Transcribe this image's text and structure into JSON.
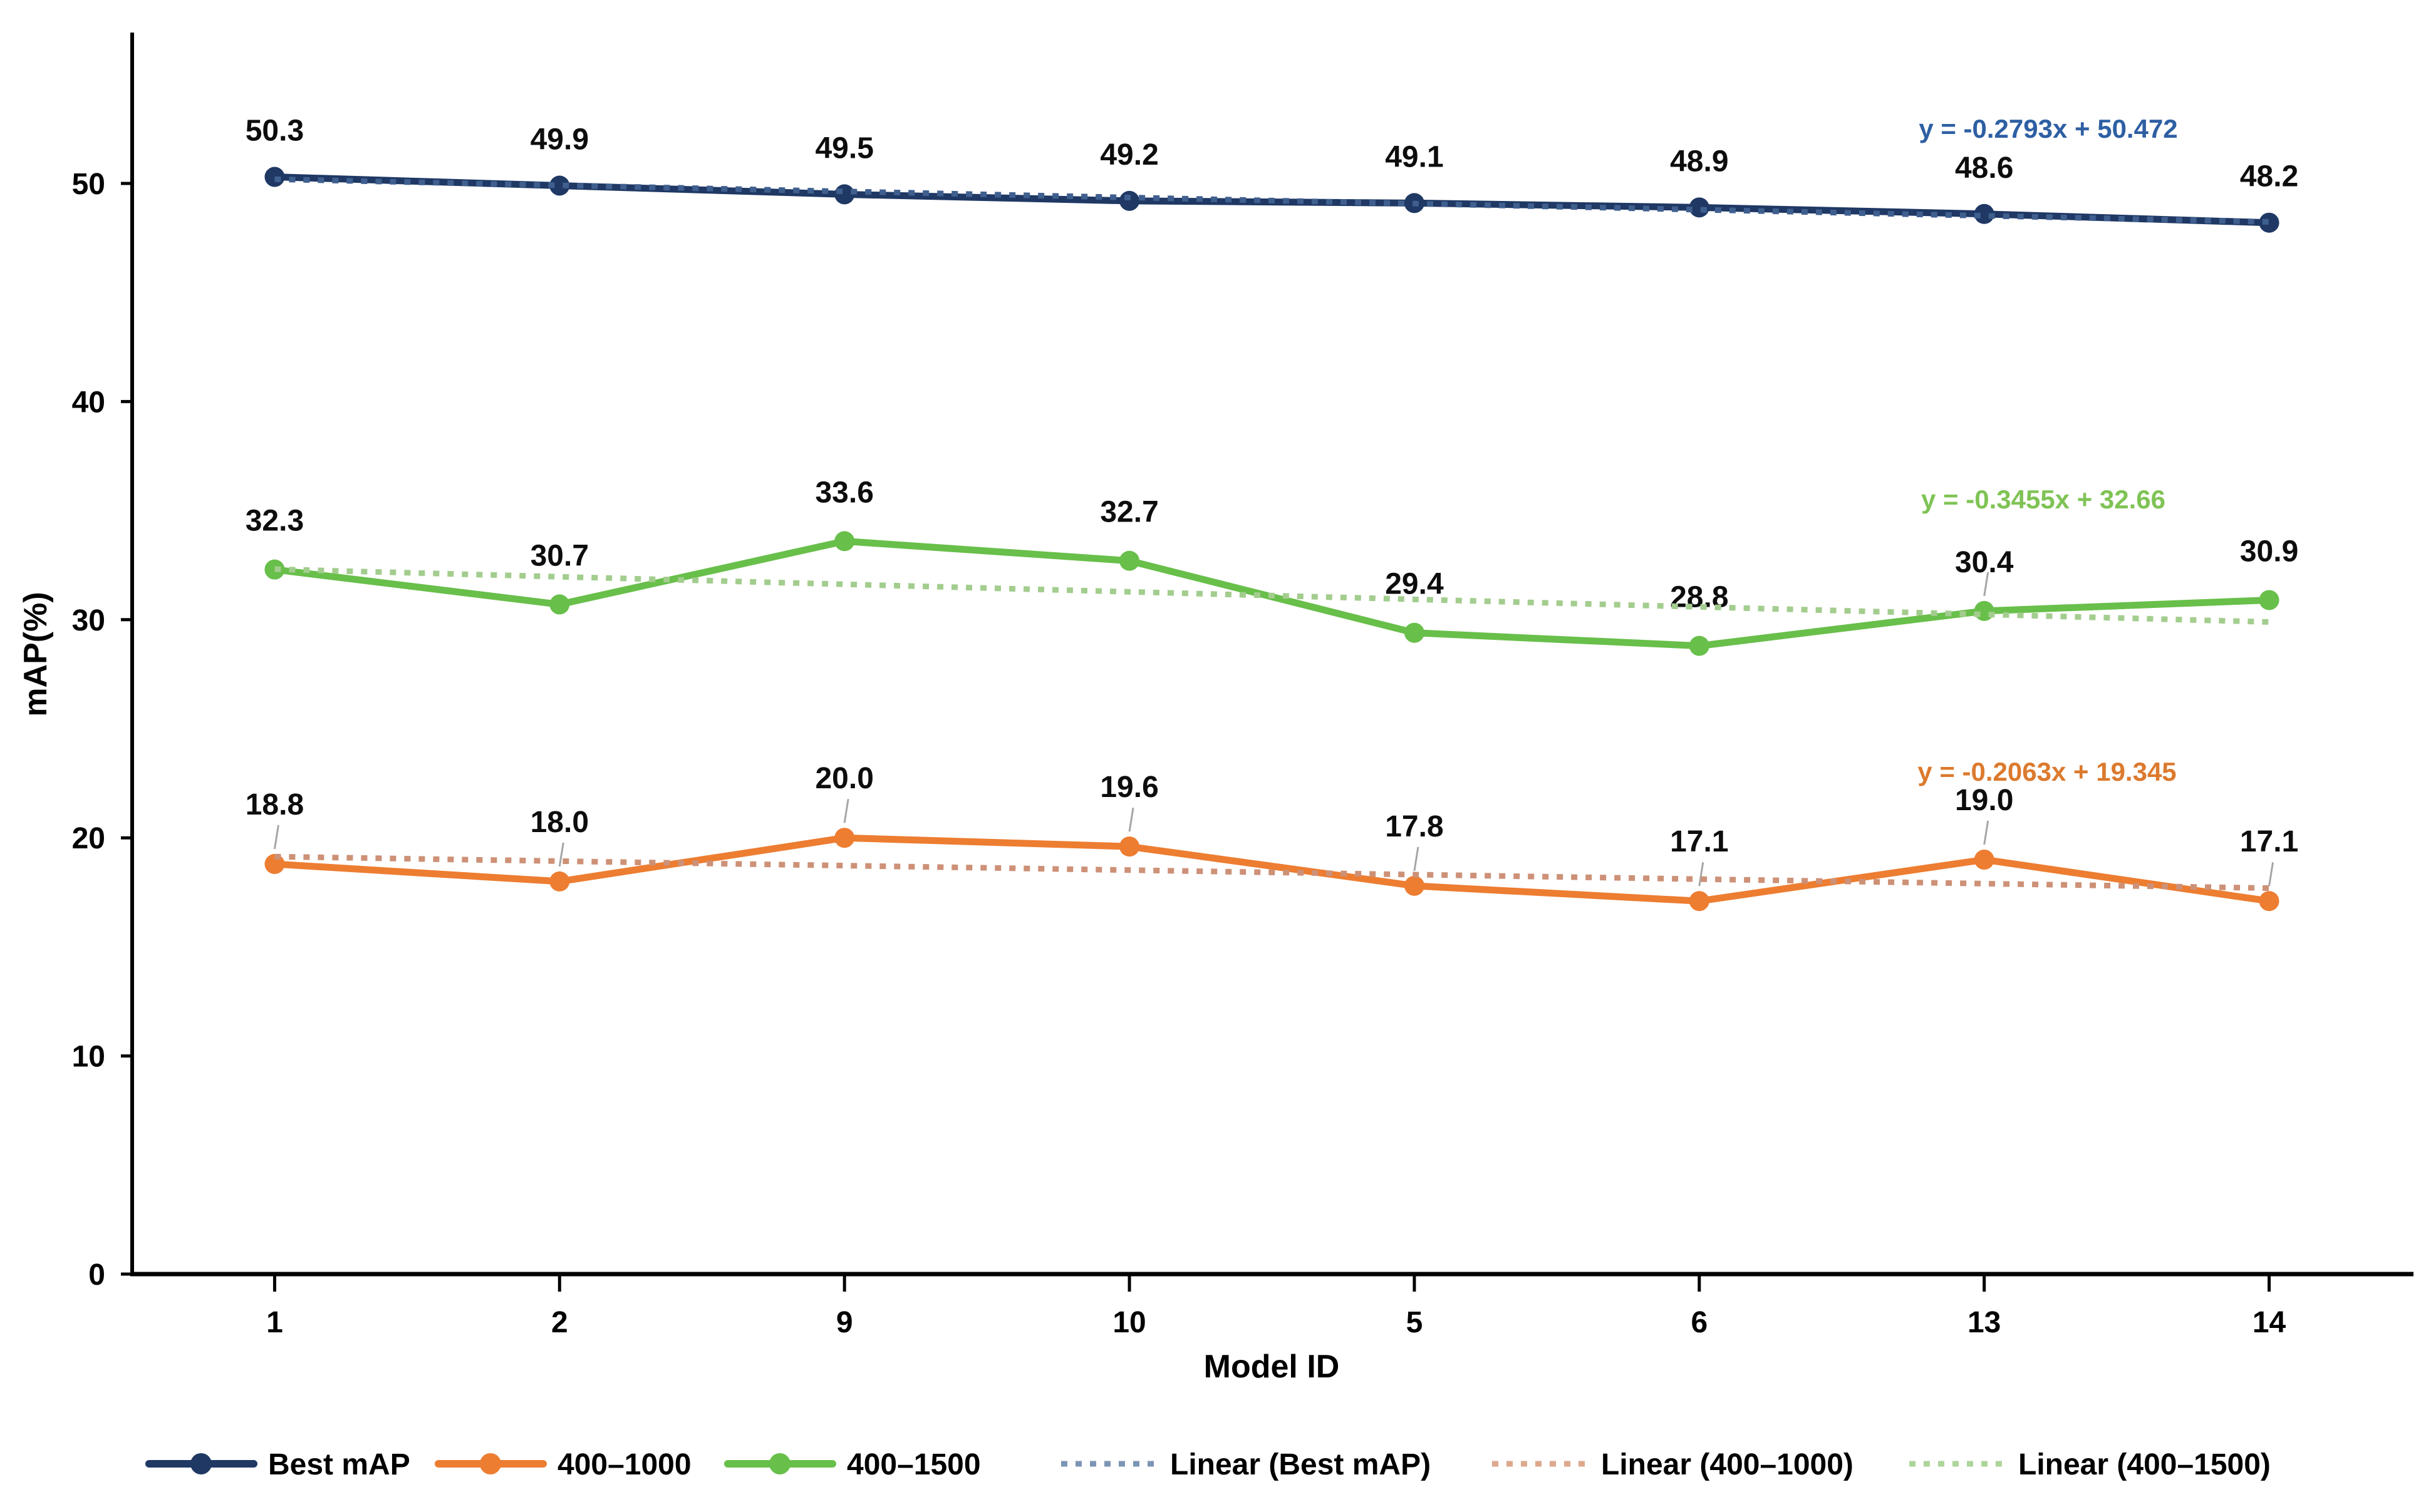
{
  "chart_data": {
    "type": "line",
    "title": "",
    "xlabel": "Model ID",
    "ylabel": "mAP(%)",
    "x_categories": [
      "1",
      "2",
      "9",
      "10",
      "5",
      "6",
      "13",
      "14"
    ],
    "y_ticks": [
      0,
      10,
      20,
      30,
      40,
      50
    ],
    "ylim": [
      0,
      56
    ],
    "grid": false,
    "legend_position": "bottom",
    "series": [
      {
        "name": "Best mAP",
        "color": "#1F3864",
        "values": [
          50.3,
          49.9,
          49.5,
          49.2,
          49.1,
          48.9,
          48.6,
          48.2
        ],
        "point_labels": [
          "50.3",
          "49.9",
          "49.5",
          "49.2",
          "49.1",
          "48.9",
          "48.6",
          "48.2"
        ],
        "label_dy": -74,
        "leader_indices": []
      },
      {
        "name": "400–1500",
        "color": "#68BF4A",
        "values": [
          32.3,
          30.7,
          33.6,
          32.7,
          29.4,
          28.8,
          30.4,
          30.9
        ],
        "point_labels": [
          "32.3",
          "30.7",
          "33.6",
          "32.7",
          "29.4",
          "28.8",
          "30.4",
          "30.9"
        ],
        "label_dy": -78,
        "leader_indices": [
          6
        ]
      },
      {
        "name": "400–1000",
        "color": "#ED7D31",
        "values": [
          18.8,
          18.0,
          20.0,
          19.6,
          17.8,
          17.1,
          19.0,
          17.1
        ],
        "point_labels": [
          "18.8",
          "18.0",
          "20.0",
          "19.6",
          "17.8",
          "17.1",
          "19.0",
          "17.1"
        ],
        "label_dy": -95,
        "leader_indices": [
          0,
          1,
          2,
          3,
          4,
          5,
          6,
          7
        ]
      }
    ],
    "trendlines": [
      {
        "name": "Linear (Best mAP)",
        "equation": "y = -0.2793x + 50.472",
        "slope": -0.2793,
        "intercept": 50.472,
        "color": "#3F5F8F",
        "eq_color": "#2E5FA3"
      },
      {
        "name": "Linear (400–1500)",
        "equation": "y = -0.3455x + 32.66",
        "slope": -0.3455,
        "intercept": 32.66,
        "color": "#A3CD8E",
        "eq_color": "#7FC355"
      },
      {
        "name": "Linear (400–1000)",
        "equation": "y = -0.2063x + 19.345",
        "slope": -0.2063,
        "intercept": 19.345,
        "color": "#CD9177",
        "eq_color": "#DC7A2E"
      }
    ],
    "legend_items": [
      {
        "label": "Best mAP",
        "type": "solid",
        "color": "#1F3864"
      },
      {
        "label": "400–1000",
        "type": "solid",
        "color": "#ED7D31"
      },
      {
        "label": "400–1500",
        "type": "solid",
        "color": "#68BF4A"
      },
      {
        "label": "Linear (Best mAP)",
        "type": "dotted",
        "color": "#7D95B5"
      },
      {
        "label": "Linear (400–1000)",
        "type": "dotted",
        "color": "#DCA98C"
      },
      {
        "label": "Linear (400–1500)",
        "type": "dotted",
        "color": "#AED59A"
      }
    ]
  }
}
